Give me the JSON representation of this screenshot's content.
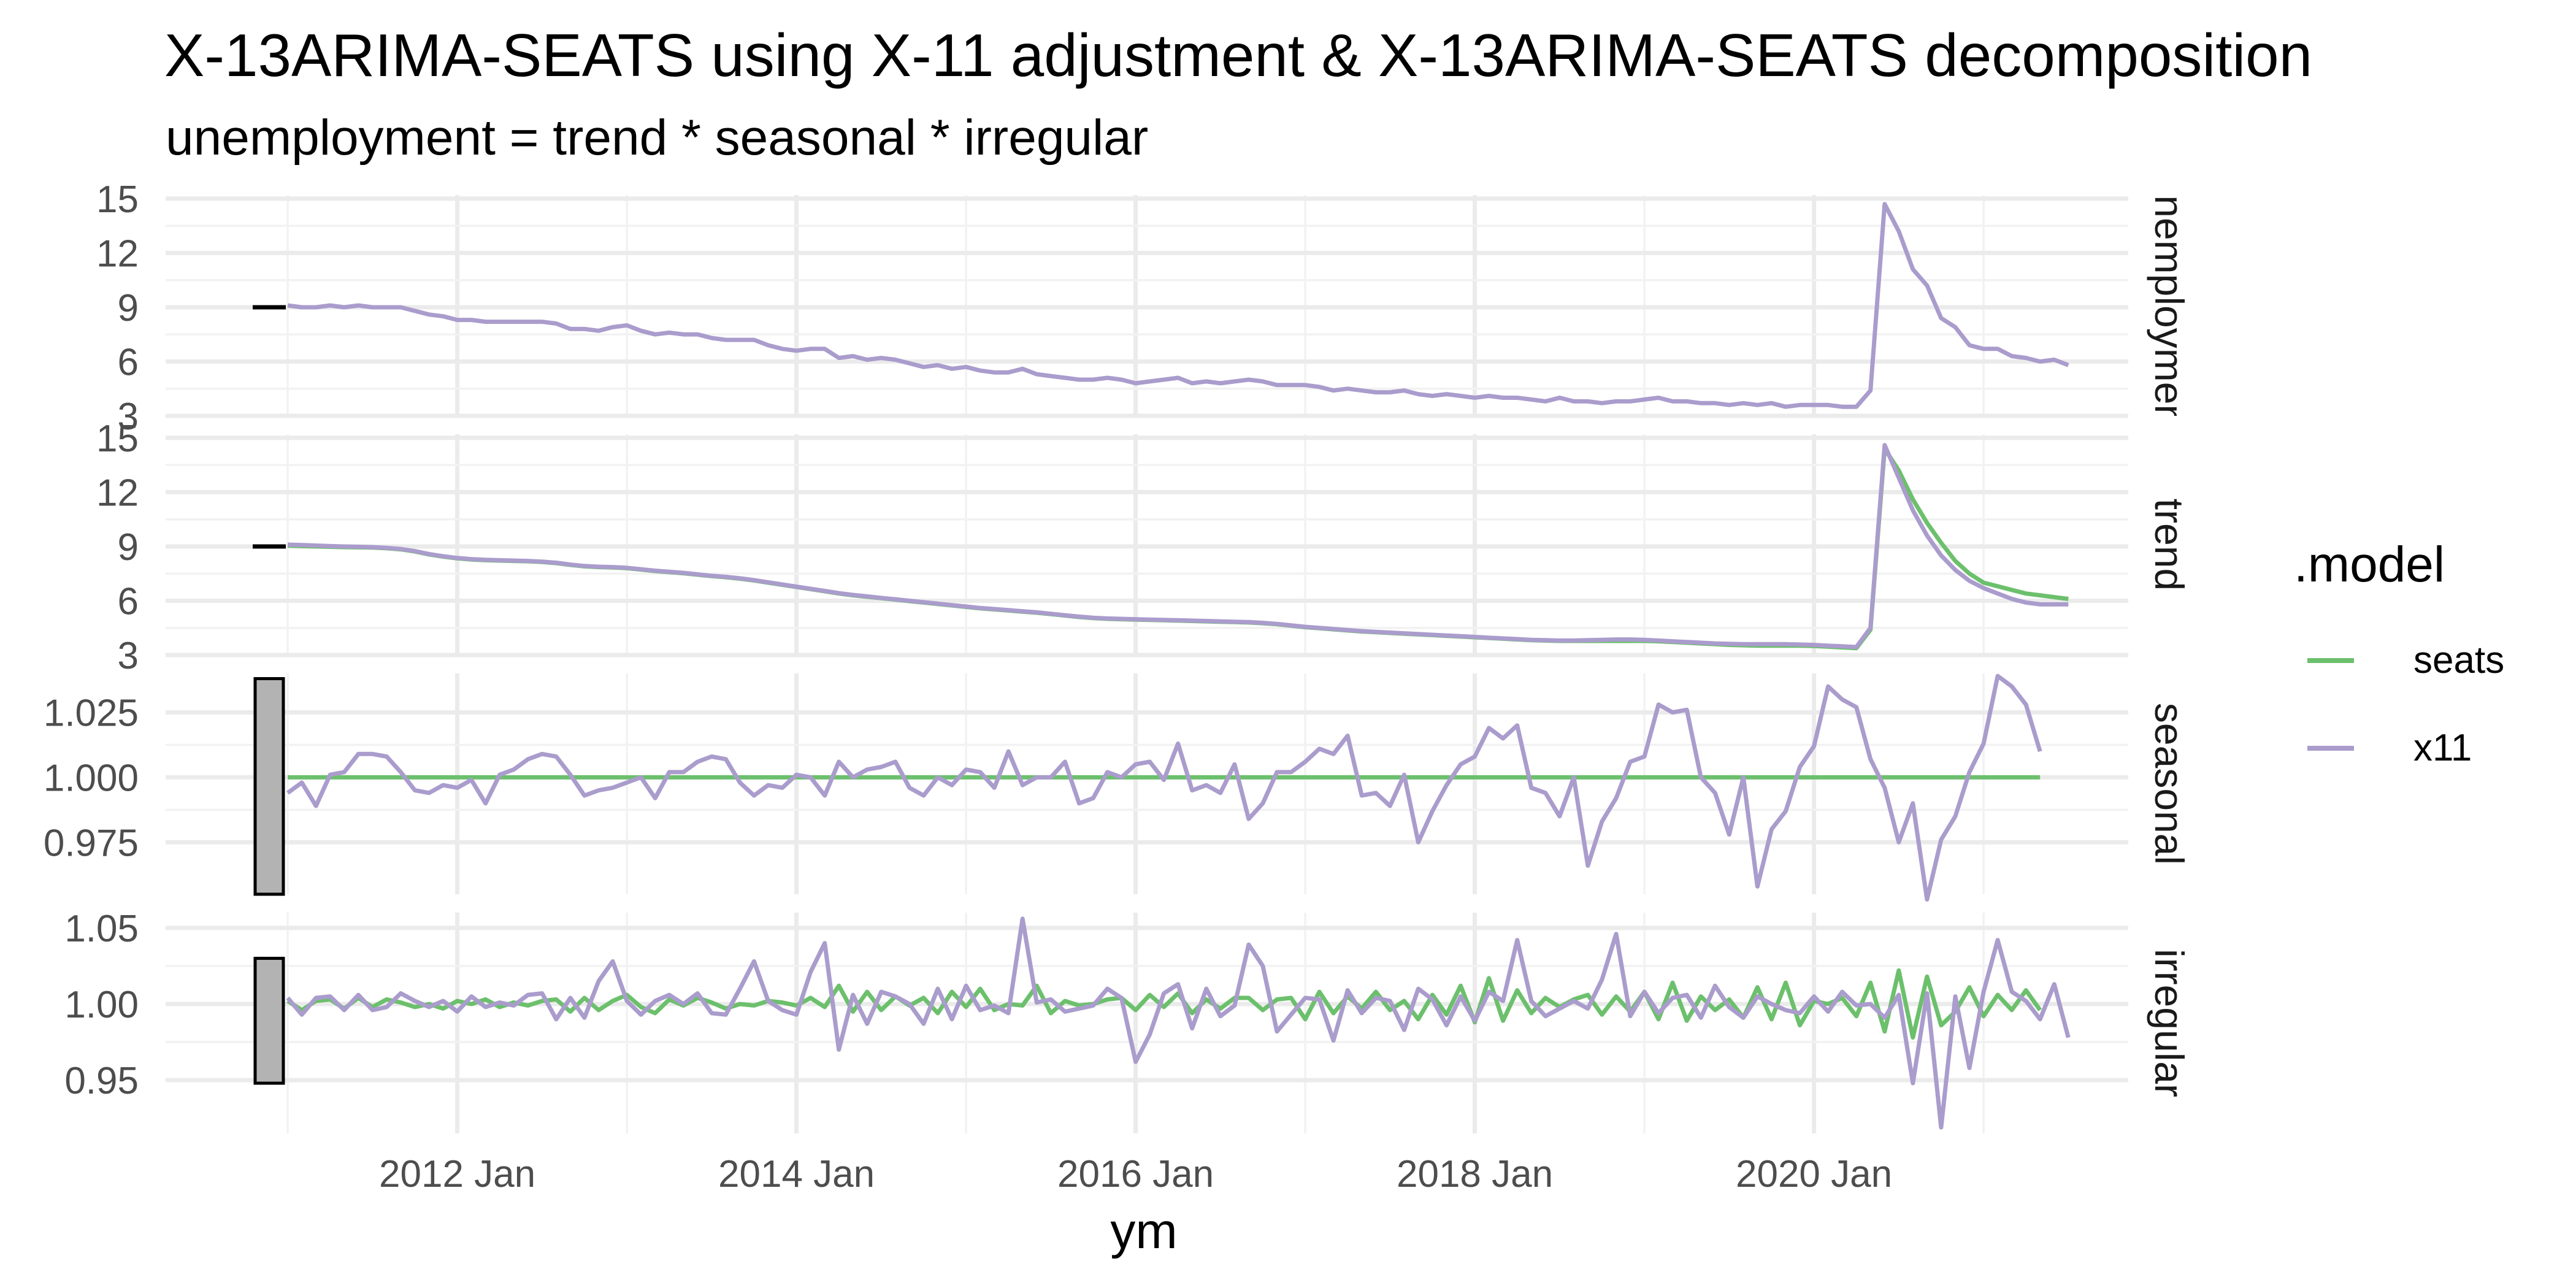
{
  "chart_data": {
    "type": "line",
    "title": "X-13ARIMA-SEATS using X-11 adjustment & X-13ARIMA-SEATS decomposition",
    "subtitle": "unemployment = trend * seasonal * irregular",
    "xlabel": "ym",
    "ylabel": "",
    "legend_title": ".model",
    "legend_position": "right",
    "grid": true,
    "x_start": "2011 Jan",
    "x_end": "2021 May",
    "x_ticks": [
      "2012 Jan",
      "2014 Jan",
      "2016 Jan",
      "2018 Jan",
      "2020 Jan"
    ],
    "series_names": [
      "seats",
      "x11"
    ],
    "colors": {
      "seats": "#6cc06c",
      "x11": "#aa9ccc"
    },
    "panels": [
      {
        "name": "unemployment",
        "strip_label": "unemployment",
        "ylim": [
          3,
          15.2
        ],
        "y_ticks": [
          "3",
          "6",
          "9",
          "12",
          "15"
        ],
        "scale_bar": [
          8.85,
          9.15
        ],
        "series": [
          {
            "name": "x11",
            "values": [
              9.1,
              9.0,
              9.0,
              9.1,
              9.0,
              9.1,
              9.0,
              9.0,
              9.0,
              8.8,
              8.6,
              8.5,
              8.3,
              8.3,
              8.2,
              8.2,
              8.2,
              8.2,
              8.2,
              8.1,
              7.8,
              7.8,
              7.7,
              7.9,
              8.0,
              7.7,
              7.5,
              7.6,
              7.5,
              7.5,
              7.3,
              7.2,
              7.2,
              7.2,
              6.9,
              6.7,
              6.6,
              6.7,
              6.7,
              6.2,
              6.3,
              6.1,
              6.2,
              6.1,
              5.9,
              5.7,
              5.8,
              5.6,
              5.7,
              5.5,
              5.4,
              5.4,
              5.6,
              5.3,
              5.2,
              5.1,
              5.0,
              5.0,
              5.1,
              5.0,
              4.8,
              4.9,
              5.0,
              5.1,
              4.8,
              4.9,
              4.8,
              4.9,
              5.0,
              4.9,
              4.7,
              4.7,
              4.7,
              4.6,
              4.4,
              4.5,
              4.4,
              4.3,
              4.3,
              4.4,
              4.2,
              4.1,
              4.2,
              4.1,
              4.0,
              4.1,
              4.0,
              4.0,
              3.9,
              3.8,
              4.0,
              3.8,
              3.8,
              3.7,
              3.8,
              3.8,
              3.9,
              4.0,
              3.8,
              3.8,
              3.7,
              3.7,
              3.6,
              3.7,
              3.6,
              3.7,
              3.5,
              3.6,
              3.6,
              3.6,
              3.5,
              3.5,
              4.4,
              14.7,
              13.2,
              11.1,
              10.2,
              8.4,
              7.9,
              6.9,
              6.7,
              6.7,
              6.3,
              6.2,
              6.0,
              6.1,
              5.8
            ]
          }
        ]
      },
      {
        "name": "trend",
        "strip_label": "trend",
        "ylim": [
          3,
          15.2
        ],
        "y_ticks": [
          "3",
          "6",
          "9",
          "12",
          "15"
        ],
        "scale_bar": [
          8.85,
          9.15
        ],
        "series": [
          {
            "name": "seats",
            "values": [
              9.05,
              9.02,
              9.0,
              8.98,
              8.96,
              8.95,
              8.94,
              8.9,
              8.84,
              8.72,
              8.56,
              8.44,
              8.34,
              8.28,
              8.24,
              8.22,
              8.2,
              8.18,
              8.14,
              8.08,
              7.98,
              7.9,
              7.86,
              7.84,
              7.8,
              7.72,
              7.64,
              7.58,
              7.52,
              7.44,
              7.36,
              7.3,
              7.22,
              7.12,
              7.0,
              6.88,
              6.76,
              6.64,
              6.52,
              6.4,
              6.3,
              6.22,
              6.14,
              6.06,
              5.98,
              5.9,
              5.82,
              5.74,
              5.66,
              5.58,
              5.52,
              5.46,
              5.4,
              5.34,
              5.26,
              5.18,
              5.1,
              5.04,
              5.0,
              4.98,
              4.96,
              4.94,
              4.92,
              4.9,
              4.88,
              4.86,
              4.84,
              4.82,
              4.8,
              4.76,
              4.7,
              4.62,
              4.54,
              4.48,
              4.42,
              4.36,
              4.3,
              4.26,
              4.22,
              4.18,
              4.14,
              4.1,
              4.06,
              4.02,
              3.98,
              3.94,
              3.9,
              3.86,
              3.82,
              3.8,
              3.78,
              3.78,
              3.78,
              3.78,
              3.78,
              3.78,
              3.78,
              3.76,
              3.72,
              3.68,
              3.64,
              3.6,
              3.56,
              3.54,
              3.52,
              3.52,
              3.52,
              3.52,
              3.5,
              3.46,
              3.42,
              3.38,
              4.4,
              14.4,
              13.2,
              11.6,
              10.3,
              9.2,
              8.2,
              7.5,
              7.0,
              6.8,
              6.6,
              6.4,
              6.3,
              6.2,
              6.1
            ]
          },
          {
            "name": "x11",
            "values": [
              9.1,
              9.08,
              9.05,
              9.02,
              9.0,
              8.98,
              8.96,
              8.92,
              8.86,
              8.74,
              8.58,
              8.46,
              8.36,
              8.3,
              8.26,
              8.24,
              8.22,
              8.2,
              8.16,
              8.1,
              8.0,
              7.92,
              7.88,
              7.86,
              7.82,
              7.74,
              7.66,
              7.6,
              7.54,
              7.46,
              7.38,
              7.32,
              7.24,
              7.14,
              7.02,
              6.9,
              6.78,
              6.66,
              6.54,
              6.42,
              6.32,
              6.24,
              6.16,
              6.08,
              6.0,
              5.92,
              5.84,
              5.76,
              5.68,
              5.6,
              5.54,
              5.48,
              5.42,
              5.36,
              5.28,
              5.2,
              5.12,
              5.06,
              5.02,
              5.0,
              4.98,
              4.96,
              4.94,
              4.92,
              4.9,
              4.88,
              4.86,
              4.84,
              4.82,
              4.78,
              4.72,
              4.64,
              4.56,
              4.5,
              4.44,
              4.38,
              4.32,
              4.28,
              4.24,
              4.2,
              4.16,
              4.12,
              4.08,
              4.04,
              4.0,
              3.96,
              3.92,
              3.88,
              3.84,
              3.82,
              3.8,
              3.8,
              3.82,
              3.84,
              3.86,
              3.86,
              3.84,
              3.8,
              3.76,
              3.72,
              3.68,
              3.64,
              3.62,
              3.6,
              3.6,
              3.6,
              3.6,
              3.58,
              3.56,
              3.52,
              3.48,
              3.44,
              4.5,
              14.6,
              12.8,
              11.0,
              9.6,
              8.5,
              7.7,
              7.1,
              6.7,
              6.4,
              6.1,
              5.9,
              5.8,
              5.8,
              5.8
            ]
          }
        ]
      },
      {
        "name": "seasonal",
        "strip_label": "seasonal",
        "ylim": [
          0.955,
          1.04
        ],
        "y_ticks": [
          "0.975",
          "1.000",
          "1.025"
        ],
        "scale_bar": [
          0.955,
          1.038
        ],
        "series": [
          {
            "name": "seats",
            "values": "constant 1.000 for all 125 months"
          },
          {
            "name": "x11",
            "values": [
              0.994,
              0.998,
              0.989,
              1.001,
              1.002,
              1.009,
              1.009,
              1.008,
              1.002,
              0.995,
              0.994,
              0.997,
              0.996,
              0.999,
              0.99,
              1.001,
              1.003,
              1.007,
              1.009,
              1.008,
              1.001,
              0.993,
              0.995,
              0.996,
              0.998,
              1.0,
              0.992,
              1.002,
              1.002,
              1.006,
              1.008,
              1.007,
              0.998,
              0.993,
              0.997,
              0.996,
              1.001,
              1.0,
              0.993,
              1.006,
              1.0,
              1.003,
              1.004,
              1.006,
              0.996,
              0.993,
              1.0,
              0.997,
              1.003,
              1.002,
              0.996,
              1.01,
              0.997,
              1.0,
              1.0,
              1.006,
              0.99,
              0.992,
              1.002,
              1.0,
              1.005,
              1.006,
              0.999,
              1.013,
              0.995,
              0.997,
              0.994,
              1.005,
              0.984,
              0.99,
              1.002,
              1.002,
              1.006,
              1.011,
              1.009,
              1.016,
              0.993,
              0.994,
              0.989,
              1.001,
              0.975,
              0.987,
              0.997,
              1.005,
              1.008,
              1.019,
              1.015,
              1.02,
              0.996,
              0.994,
              0.985,
              1.0,
              0.966,
              0.983,
              0.992,
              1.006,
              1.008,
              1.028,
              1.025,
              1.026,
              1.0,
              0.994,
              0.978,
              1.0,
              0.958,
              0.98,
              0.987,
              1.004,
              1.012,
              1.035,
              1.03,
              1.027,
              1.007,
              0.996,
              0.975,
              0.99,
              0.953,
              0.976,
              0.985,
              1.002,
              1.013,
              1.039,
              1.035,
              1.028,
              1.01
            ]
          }
        ]
      },
      {
        "name": "irregular",
        "strip_label": "irregular",
        "ylim": [
          0.915,
          1.06
        ],
        "y_ticks": [
          "0.95",
          "1.00",
          "1.05"
        ],
        "scale_bar": [
          0.948,
          1.03
        ],
        "series": [
          {
            "name": "seats",
            "values": [
              1.002,
              0.996,
              1.002,
              1.003,
              0.997,
              1.004,
              0.998,
              1.003,
              1.001,
              0.998,
              1.0,
              0.997,
              1.002,
              1.0,
              1.003,
              0.998,
              1.001,
              0.999,
              1.002,
              1.003,
              0.995,
              1.004,
              0.996,
              1.002,
              1.006,
              0.998,
              0.994,
              1.003,
              0.999,
              1.004,
              1.001,
              0.997,
              1.0,
              0.999,
              1.002,
              1.001,
              0.999,
              1.004,
              0.998,
              1.012,
              0.995,
              1.008,
              0.996,
              1.005,
              0.999,
              1.004,
              0.994,
              1.008,
              0.998,
              1.01,
              0.996,
              1.0,
              0.999,
              1.012,
              0.994,
              1.002,
              0.999,
              1.0,
              1.003,
              1.004,
              0.996,
              1.006,
              0.998,
              1.007,
              0.994,
              1.003,
              0.997,
              1.004,
              1.004,
              0.996,
              1.003,
              1.004,
              0.99,
              1.008,
              0.994,
              1.005,
              0.997,
              1.008,
              0.996,
              1.002,
              0.99,
              1.006,
              0.993,
              1.012,
              0.988,
              1.017,
              0.989,
              1.009,
              0.994,
              1.004,
              0.998,
              1.003,
              1.006,
              0.993,
              1.005,
              0.995,
              1.008,
              0.99,
              1.014,
              0.989,
              1.005,
              0.996,
              1.003,
              0.991,
              1.011,
              0.99,
              1.014,
              0.986,
              1.002,
              1.0,
              1.004,
              0.992,
              1.014,
              0.982,
              1.022,
              0.978,
              1.018,
              0.986,
              0.995,
              1.011,
              0.992,
              1.006,
              0.996,
              1.009,
              0.996
            ]
          },
          {
            "name": "x11",
            "values": [
              1.004,
              0.993,
              1.004,
              1.005,
              0.996,
              1.006,
              0.996,
              0.998,
              1.007,
              1.002,
              0.998,
              1.002,
              0.995,
              1.005,
              0.998,
              1.001,
              0.999,
              1.006,
              1.007,
              0.99,
              1.004,
              0.991,
              1.015,
              1.028,
              1.002,
              0.993,
              1.002,
              1.006,
              1.0,
              1.007,
              0.994,
              0.993,
              1.01,
              1.028,
              1.002,
              0.996,
              0.993,
              1.021,
              1.04,
              0.97,
              1.006,
              0.987,
              1.008,
              1.005,
              1.0,
              0.987,
              1.01,
              0.99,
              1.012,
              0.996,
              0.999,
              0.994,
              1.056,
              1.001,
              1.003,
              0.995,
              0.997,
              0.999,
              1.01,
              1.004,
              0.962,
              0.98,
              1.007,
              1.013,
              0.984,
              1.01,
              0.992,
              0.999,
              1.039,
              1.025,
              0.982,
              0.993,
              1.004,
              1.003,
              0.976,
              1.009,
              0.994,
              1.004,
              1.002,
              0.983,
              1.01,
              1.003,
              0.986,
              1.005,
              0.989,
              1.008,
              1.002,
              1.042,
              1.002,
              0.992,
              0.997,
              1.002,
              0.997,
              1.016,
              1.046,
              0.992,
              1.008,
              0.994,
              1.004,
              1.006,
              0.991,
              1.012,
              0.998,
              0.991,
              1.005,
              1.0,
              0.996,
              0.994,
              1.005,
              0.995,
              1.008,
              0.999,
              1.0,
              0.991,
              1.006,
              0.948,
              1.007,
              0.919,
              1.005,
              0.958,
              1.008,
              1.042,
              1.008,
              1.002,
              0.99,
              1.013,
              0.978
            ]
          }
        ]
      }
    ]
  }
}
